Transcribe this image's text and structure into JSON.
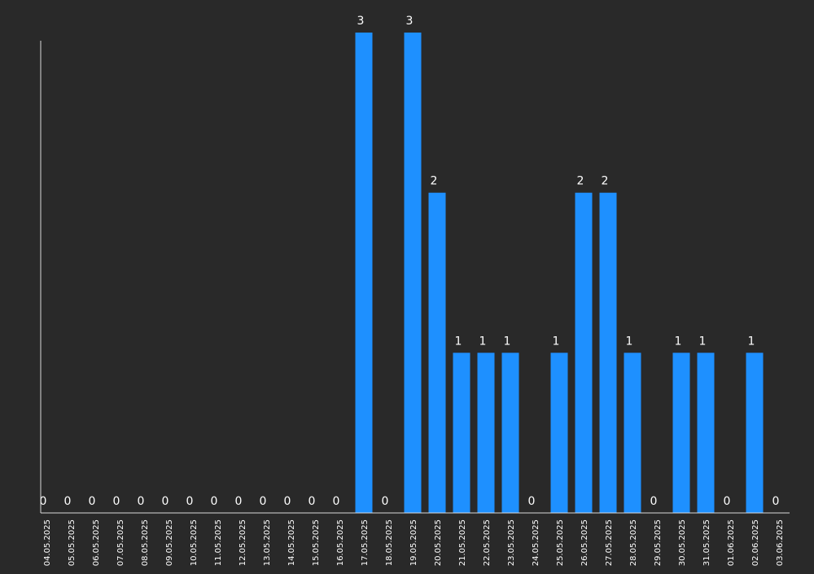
{
  "chart_data": {
    "type": "bar",
    "categories": [
      "04.05.2025",
      "05.05.2025",
      "06.05.2025",
      "07.05.2025",
      "08.05.2025",
      "09.05.2025",
      "10.05.2025",
      "11.05.2025",
      "12.05.2025",
      "13.05.2025",
      "14.05.2025",
      "15.05.2025",
      "16.05.2025",
      "17.05.2025",
      "18.05.2025",
      "19.05.2025",
      "20.05.2025",
      "21.05.2025",
      "22.05.2025",
      "23.05.2025",
      "24.05.2025",
      "25.05.2025",
      "26.05.2025",
      "27.05.2025",
      "28.05.2025",
      "29.05.2025",
      "30.05.2025",
      "31.05.2025",
      "01.06.2025",
      "02.06.2025",
      "03.06.2025"
    ],
    "values": [
      0,
      0,
      0,
      0,
      0,
      0,
      0,
      0,
      0,
      0,
      0,
      0,
      0,
      3,
      0,
      3,
      2,
      1,
      1,
      1,
      0,
      1,
      2,
      2,
      1,
      0,
      1,
      1,
      0,
      1,
      0
    ],
    "ylim": [
      0,
      3
    ],
    "grid": false,
    "legend": "none",
    "data_labels": true,
    "colors": {
      "bar": "#1E90FF",
      "background": "#292929",
      "axis": "#D9D9D9",
      "text": "#FFFFFF"
    }
  }
}
